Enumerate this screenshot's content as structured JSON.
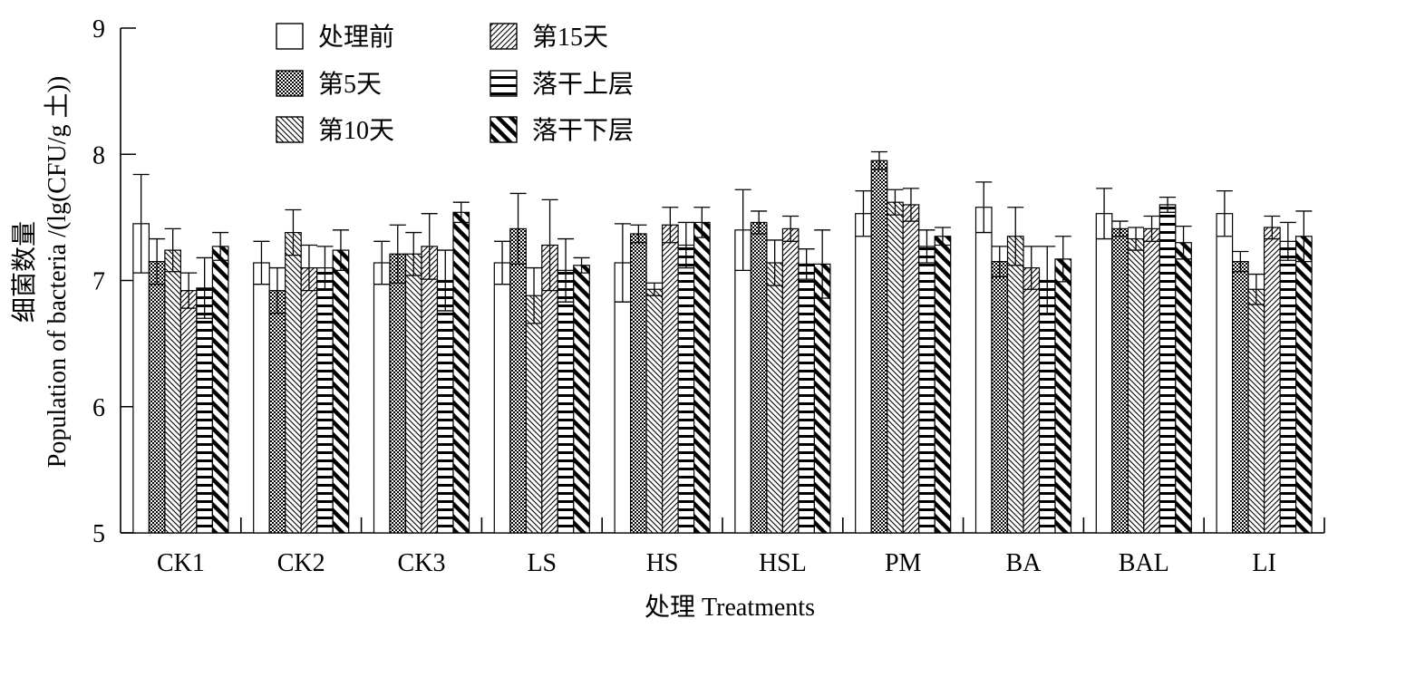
{
  "chart_data": {
    "type": "bar",
    "xlabel": "处理 Treatments",
    "ylabel_cn": "细菌数量",
    "ylabel_en": "Population of bacteria /(lg(CFU/g 土))",
    "ylim": [
      5,
      9
    ],
    "yticks": [
      "5",
      "6",
      "7",
      "8",
      "9"
    ],
    "error_bars": true,
    "legend_position": "top-left",
    "categories": [
      "CK1",
      "CK2",
      "CK3",
      "LS",
      "HS",
      "HSL",
      "PM",
      "BA",
      "BAL",
      "LI"
    ],
    "series": [
      {
        "name": "处理前",
        "pattern": "white",
        "values": [
          7.45,
          7.14,
          7.14,
          7.14,
          7.14,
          7.4,
          7.53,
          7.58,
          7.53,
          7.53
        ],
        "errors": [
          0.39,
          0.17,
          0.17,
          0.17,
          0.31,
          0.32,
          0.18,
          0.2,
          0.2,
          0.18
        ]
      },
      {
        "name": "第5天",
        "pattern": "check",
        "values": [
          7.15,
          6.92,
          7.21,
          7.41,
          7.37,
          7.46,
          7.95,
          7.15,
          7.41,
          7.15
        ],
        "errors": [
          0.18,
          0.18,
          0.23,
          0.28,
          0.07,
          0.09,
          0.07,
          0.12,
          0.06,
          0.08
        ]
      },
      {
        "name": "第10天",
        "pattern": "diag-back",
        "values": [
          7.24,
          7.38,
          7.21,
          6.88,
          6.93,
          7.14,
          7.62,
          7.35,
          7.33,
          6.93
        ],
        "errors": [
          0.17,
          0.18,
          0.17,
          0.22,
          0.05,
          0.18,
          0.1,
          0.23,
          0.09,
          0.12
        ]
      },
      {
        "name": "第15天",
        "pattern": "diag-fwd",
        "values": [
          6.92,
          7.1,
          7.27,
          7.28,
          7.44,
          7.41,
          7.6,
          7.1,
          7.41,
          7.42
        ],
        "errors": [
          0.14,
          0.18,
          0.26,
          0.36,
          0.14,
          0.1,
          0.13,
          0.17,
          0.1,
          0.09
        ]
      },
      {
        "name": "落干上层",
        "pattern": "horiz",
        "values": [
          6.94,
          7.1,
          7.0,
          7.08,
          7.28,
          7.13,
          7.27,
          7.0,
          7.6,
          7.31
        ],
        "errors": [
          0.24,
          0.17,
          0.24,
          0.25,
          0.18,
          0.12,
          0.13,
          0.27,
          0.06,
          0.15
        ]
      },
      {
        "name": "落干下层",
        "pattern": "bold-diag",
        "values": [
          7.27,
          7.24,
          7.54,
          7.12,
          7.46,
          7.13,
          7.35,
          7.17,
          7.3,
          7.35
        ],
        "errors": [
          0.11,
          0.16,
          0.08,
          0.06,
          0.12,
          0.27,
          0.07,
          0.18,
          0.13,
          0.2
        ]
      }
    ]
  }
}
